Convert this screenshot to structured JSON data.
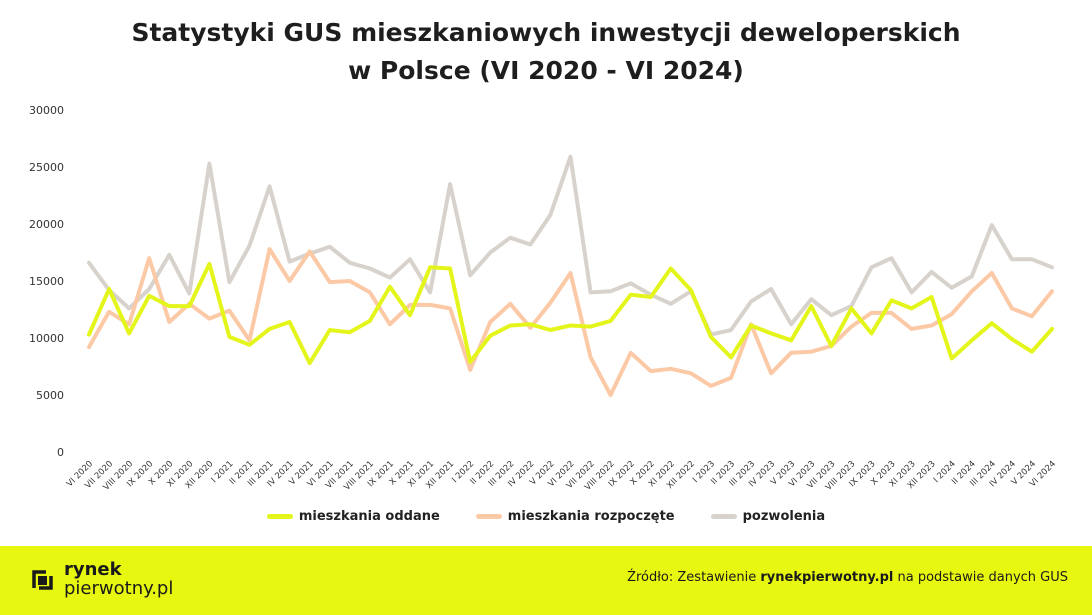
{
  "title": {
    "line1": "Statystyki GUS mieszkaniowych inwestycji deweloperskich",
    "line2": "w Polsce (VI 2020 - VI 2024)"
  },
  "chart_data": {
    "type": "line",
    "yticks": [
      0,
      5000,
      10000,
      15000,
      20000,
      25000,
      30000
    ],
    "ylim": [
      0,
      30000
    ],
    "grid": false,
    "legend_position": "bottom",
    "categories": [
      "VI 2020",
      "VII 2020",
      "VIII 2020",
      "IX 2020",
      "X 2020",
      "XI 2020",
      "XII 2020",
      "I 2021",
      "II 2021",
      "III 2021",
      "IV 2021",
      "V 2021",
      "VI 2021",
      "VII 2021",
      "VIII 2021",
      "IX 2021",
      "X 2021",
      "XI 2021",
      "XII 2021",
      "I 2022",
      "II 2022",
      "III 2022",
      "IV 2022",
      "V 2022",
      "VI 2022",
      "VII 2022",
      "VIII 2022",
      "IX 2022",
      "X 2022",
      "XI 2022",
      "XII 2022",
      "I 2023",
      "II 2023",
      "III 2023",
      "IV 2023",
      "V 2023",
      "VI 2023",
      "VII 2023",
      "VIII 2023",
      "IX 2023",
      "X 2023",
      "XI 2023",
      "XII 2023",
      "I 2024",
      "II 2024",
      "III 2024",
      "IV 2024",
      "V 2024",
      "VI 2024"
    ],
    "xtick_labels": [
      "VI 2020",
      "VII 2020",
      "VIII 2020",
      "IX 2020",
      "X 2020",
      "XI 2020",
      "XII 2020",
      "I 2021",
      "II 2021",
      "III 2021",
      "IV 2021",
      "V 2021",
      "VI 2021",
      "VII 2021",
      "VIII 2021",
      "IX 2021",
      "X 2021",
      "XI 2021",
      "XII 2021",
      "I 2022",
      "II 2022",
      "III 2022",
      "IV 2022",
      "V 2022",
      "VI 2022",
      "VII 2022",
      "VIII 2022",
      "IX 2022",
      "X 2022",
      "XI 2022",
      "XII 2022",
      "I 2023",
      "II 2023",
      "III 2023",
      "IV 2023",
      "V 2023",
      "VI 2023",
      "VII 2023",
      "VIII 2023",
      "IX 2023",
      "X 2023",
      "XI 2023",
      "XII 2023",
      "I 2024",
      "II 2024",
      "III 2024",
      "IV 2024",
      "V 2024",
      "VI 2024"
    ],
    "series": [
      {
        "name": "mieszkania oddane",
        "color": "#e3f51a",
        "values": [
          10300,
          14300,
          10400,
          13700,
          12800,
          12800,
          16500,
          10100,
          9400,
          10800,
          11400,
          7800,
          10700,
          10500,
          11500,
          14500,
          12000,
          16200,
          16100,
          7900,
          10200,
          11100,
          11200,
          10700,
          11100,
          11000,
          11500,
          13800,
          13600,
          16100,
          14200,
          10100,
          8300,
          11100,
          10400,
          9800,
          12800,
          9300,
          12600,
          10400,
          13300,
          12600,
          13600,
          8200,
          9800,
          11300,
          9900,
          8800,
          10800
        ]
      },
      {
        "name": "mieszkania rozpoczęte",
        "color": "#fcc9a6",
        "values": [
          9200,
          12300,
          11200,
          17000,
          11400,
          13000,
          11700,
          12400,
          9800,
          17800,
          15000,
          17600,
          14900,
          15000,
          14000,
          11200,
          12900,
          12900,
          12600,
          7200,
          11400,
          13000,
          10900,
          13100,
          15700,
          8300,
          5000,
          8700,
          7100,
          7300,
          6900,
          5800,
          6500,
          11200,
          6900,
          8700,
          8800,
          9300,
          11000,
          12200,
          12200,
          10800,
          11100,
          12100,
          14100,
          15700,
          12600,
          11900,
          14100
        ]
      },
      {
        "name": "pozwolenia",
        "color": "#d8d2cc",
        "values": [
          16600,
          14200,
          12600,
          14300,
          17300,
          13900,
          25300,
          14900,
          18100,
          23300,
          16700,
          17400,
          18000,
          16600,
          16100,
          15300,
          16900,
          14000,
          23500,
          15500,
          17500,
          18800,
          18200,
          20800,
          25900,
          14000,
          14100,
          14800,
          13800,
          13000,
          14100,
          10300,
          10700,
          13200,
          14300,
          11200,
          13400,
          12000,
          12800,
          16200,
          17000,
          14000,
          15800,
          14400,
          15400,
          19900,
          16900,
          16900,
          16200
        ]
      }
    ]
  },
  "legend": {
    "items": [
      "mieszkania oddane",
      "mieszkania rozpoczęte",
      "pozwolenia"
    ]
  },
  "footer": {
    "logo_line1": "rynek",
    "logo_line2": "pierwotny.pl",
    "source_prefix": "Źródło: Zestawienie ",
    "source_bold": "rynekpierwotny.pl",
    "source_suffix": " na podstawie danych GUS",
    "background": "#e8f70f"
  }
}
